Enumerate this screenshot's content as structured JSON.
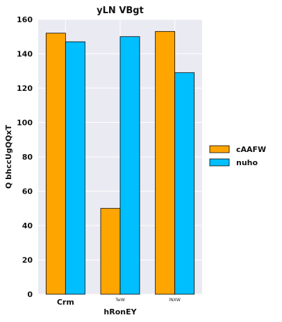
{
  "chart_data": {
    "type": "bar",
    "title": "yLN  VBgt",
    "xlabel": "hRonEY",
    "ylabel": "Q bhccUgQQxT",
    "categories": [
      "Crm",
      "TwW",
      "lNXW"
    ],
    "series": [
      {
        "name": "cAAFW",
        "color": "#FFA500",
        "values": [
          152,
          50,
          153
        ]
      },
      {
        "name": "nuho",
        "color": "#00BFFF",
        "values": [
          147,
          150,
          129
        ]
      }
    ],
    "ylim": [
      0,
      160
    ],
    "yticks": [
      0,
      20,
      40,
      60,
      80,
      100,
      120,
      140,
      160
    ],
    "grid": true,
    "legend_position": "right",
    "colors": {
      "plot_background": "#EAEAF2",
      "grid": "#FFFFFF",
      "bar_edge": "#000000"
    }
  }
}
